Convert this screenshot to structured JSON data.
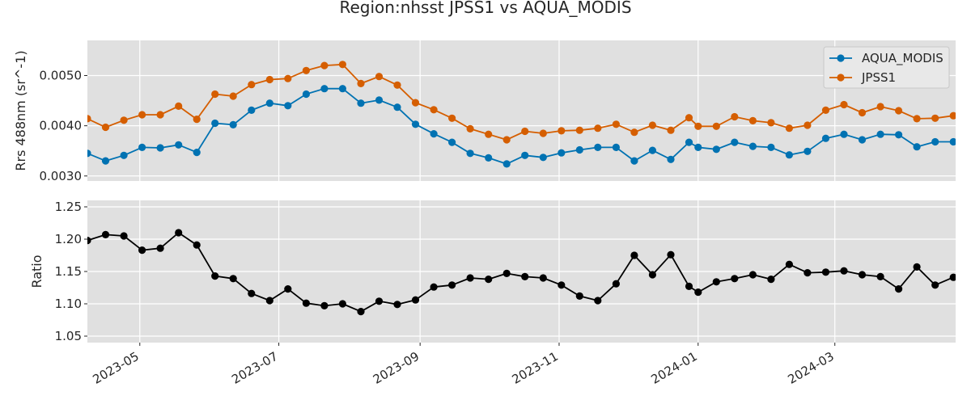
{
  "chart_data": {
    "title": "Region:nhsst JPSS1 vs AQUA_MODIS",
    "type": "line",
    "x_axis": {
      "tick_labels": [
        "2023-05",
        "2023-07",
        "2023-09",
        "2023-11",
        "2024-01",
        "2024-03"
      ],
      "tick_dates": [
        "2023-05-01",
        "2023-07-01",
        "2023-09-01",
        "2023-11-01",
        "2024-01-01",
        "2024-03-01"
      ],
      "range": [
        "2023-04-08",
        "2024-04-23"
      ]
    },
    "dates": [
      "2023-04-08",
      "2023-04-16",
      "2023-04-24",
      "2023-05-02",
      "2023-05-10",
      "2023-05-18",
      "2023-05-26",
      "2023-06-03",
      "2023-06-11",
      "2023-06-19",
      "2023-06-27",
      "2023-07-05",
      "2023-07-13",
      "2023-07-21",
      "2023-07-29",
      "2023-08-06",
      "2023-08-14",
      "2023-08-22",
      "2023-08-30",
      "2023-09-07",
      "2023-09-15",
      "2023-09-23",
      "2023-10-01",
      "2023-10-09",
      "2023-10-17",
      "2023-10-25",
      "2023-11-02",
      "2023-11-10",
      "2023-11-18",
      "2023-11-26",
      "2023-12-04",
      "2023-12-12",
      "2023-12-20",
      "2023-12-28",
      "2024-01-01",
      "2024-01-09",
      "2024-01-17",
      "2024-01-25",
      "2024-02-02",
      "2024-02-10",
      "2024-02-18",
      "2024-02-26",
      "2024-03-05",
      "2024-03-13",
      "2024-03-21",
      "2024-03-29",
      "2024-04-06",
      "2024-04-14",
      "2024-04-22"
    ],
    "panels": [
      {
        "ylabel": "Rrs 488nm (sr^-1)",
        "ylim": [
          0.0029,
          0.0057
        ],
        "yticks": [
          0.003,
          0.004,
          0.005
        ],
        "ytick_labels": [
          "0.0030",
          "0.0040",
          "0.0050"
        ],
        "grid": true,
        "legend_position": "top-right",
        "series": [
          {
            "name": "AQUA_MODIS",
            "color": "#0072b2",
            "values": [
              0.00345,
              0.0033,
              0.00341,
              0.00357,
              0.00356,
              0.00362,
              0.00347,
              0.00405,
              0.00402,
              0.00431,
              0.00445,
              0.0044,
              0.00463,
              0.00474,
              0.00474,
              0.00445,
              0.00451,
              0.00437,
              0.00403,
              0.00384,
              0.00367,
              0.00345,
              0.00336,
              0.00324,
              0.00341,
              0.00337,
              0.00346,
              0.00352,
              0.00357,
              0.00357,
              0.0033,
              0.00351,
              0.00333,
              0.00367,
              0.00357,
              0.00353,
              0.00367,
              0.00359,
              0.00357,
              0.00342,
              0.00349,
              0.00375,
              0.00383,
              0.00372,
              0.00383,
              0.00382,
              0.00358,
              0.00368,
              0.00368
            ]
          },
          {
            "name": "JPSS1",
            "color": "#d55e00",
            "values": [
              0.00414,
              0.00397,
              0.00411,
              0.00422,
              0.00422,
              0.00439,
              0.00413,
              0.00463,
              0.00459,
              0.00482,
              0.00492,
              0.00494,
              0.0051,
              0.0052,
              0.00522,
              0.00484,
              0.00498,
              0.00481,
              0.00446,
              0.00432,
              0.00415,
              0.00394,
              0.00383,
              0.00372,
              0.00389,
              0.00385,
              0.0039,
              0.00391,
              0.00395,
              0.00403,
              0.00387,
              0.00401,
              0.00391,
              0.00416,
              0.00399,
              0.00399,
              0.00418,
              0.0041,
              0.00406,
              0.00395,
              0.00401,
              0.00431,
              0.00442,
              0.00426,
              0.00438,
              0.0043,
              0.00414,
              0.00415,
              0.0042
            ]
          }
        ]
      },
      {
        "ylabel": "Ratio",
        "ylim": [
          1.04,
          1.26
        ],
        "yticks": [
          1.05,
          1.1,
          1.15,
          1.2,
          1.25
        ],
        "ytick_labels": [
          "1.05",
          "1.10",
          "1.15",
          "1.20",
          "1.25"
        ],
        "grid": true,
        "series": [
          {
            "name": "",
            "color": "#000000",
            "values": [
              1.198,
              1.207,
              1.205,
              1.183,
              1.186,
              1.21,
              1.191,
              1.143,
              1.139,
              1.116,
              1.105,
              1.123,
              1.101,
              1.097,
              1.1,
              1.088,
              1.104,
              1.099,
              1.106,
              1.126,
              1.129,
              1.14,
              1.138,
              1.147,
              1.142,
              1.14,
              1.129,
              1.112,
              1.105,
              1.131,
              1.175,
              1.145,
              1.176,
              1.127,
              1.118,
              1.134,
              1.139,
              1.145,
              1.138,
              1.161,
              1.148,
              1.149,
              1.151,
              1.145,
              1.142,
              1.123,
              1.157,
              1.129,
              1.141
            ]
          }
        ]
      }
    ]
  }
}
